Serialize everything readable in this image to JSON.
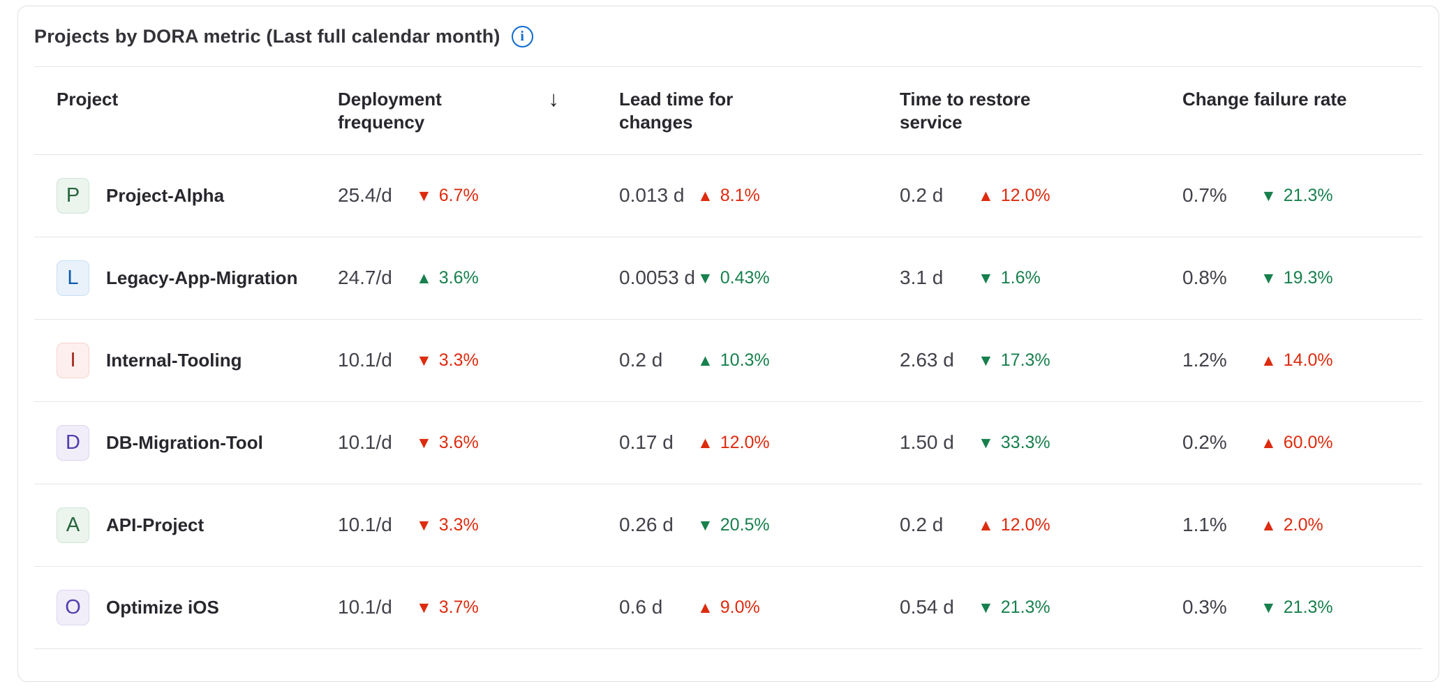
{
  "card": {
    "title": "Projects by DORA metric (Last full calendar month)",
    "info_icon_glyph": "i"
  },
  "icons": {
    "sort_descending": "↓",
    "trend_up": "▲",
    "trend_down": "▼"
  },
  "colors": {
    "good_trend": "#17804d",
    "bad_trend": "#dd2b0e",
    "info_accent": "#0e6bd0",
    "badge_green_text": "#24663b",
    "badge_blue_text": "#0b5cad",
    "badge_red_text": "#9e2819",
    "badge_purple_text": "#523dac"
  },
  "table": {
    "columns": [
      {
        "label": "Project",
        "sorted": false
      },
      {
        "label": "Deployment frequency",
        "sorted": true,
        "sort_direction": "descending"
      },
      {
        "label": "Lead time for changes",
        "sorted": false
      },
      {
        "label": "Time to restore service",
        "sorted": false
      },
      {
        "label": "Change failure rate",
        "sorted": false
      }
    ],
    "rows": [
      {
        "initial": "P",
        "badge": "green",
        "name": "Project-Alpha",
        "metrics": [
          {
            "value": "25.4/d",
            "delta": "6.7%",
            "direction": "down",
            "tone": "bad"
          },
          {
            "value": "0.013 d",
            "delta": "8.1%",
            "direction": "up",
            "tone": "bad"
          },
          {
            "value": "0.2 d",
            "delta": "12.0%",
            "direction": "up",
            "tone": "bad"
          },
          {
            "value": "0.7%",
            "delta": "21.3%",
            "direction": "down",
            "tone": "good"
          }
        ]
      },
      {
        "initial": "L",
        "badge": "blue",
        "name": "Legacy-App-Migration",
        "metrics": [
          {
            "value": "24.7/d",
            "delta": "3.6%",
            "direction": "up",
            "tone": "good"
          },
          {
            "value": "0.0053 d",
            "delta": "0.43%",
            "direction": "down",
            "tone": "good"
          },
          {
            "value": "3.1 d",
            "delta": "1.6%",
            "direction": "down",
            "tone": "good"
          },
          {
            "value": "0.8%",
            "delta": "19.3%",
            "direction": "down",
            "tone": "good"
          }
        ]
      },
      {
        "initial": "I",
        "badge": "red",
        "name": "Internal-Tooling",
        "metrics": [
          {
            "value": "10.1/d",
            "delta": "3.3%",
            "direction": "down",
            "tone": "bad"
          },
          {
            "value": "0.2 d",
            "delta": "10.3%",
            "direction": "up",
            "tone": "good"
          },
          {
            "value": "2.63 d",
            "delta": "17.3%",
            "direction": "down",
            "tone": "good"
          },
          {
            "value": "1.2%",
            "delta": "14.0%",
            "direction": "up",
            "tone": "bad"
          }
        ]
      },
      {
        "initial": "D",
        "badge": "purple",
        "name": "DB-Migration-Tool",
        "metrics": [
          {
            "value": "10.1/d",
            "delta": "3.6%",
            "direction": "down",
            "tone": "bad"
          },
          {
            "value": "0.17 d",
            "delta": "12.0%",
            "direction": "up",
            "tone": "bad"
          },
          {
            "value": "1.50 d",
            "delta": "33.3%",
            "direction": "down",
            "tone": "good"
          },
          {
            "value": "0.2%",
            "delta": "60.0%",
            "direction": "up",
            "tone": "bad"
          }
        ]
      },
      {
        "initial": "A",
        "badge": "green",
        "name": "API-Project",
        "metrics": [
          {
            "value": "10.1/d",
            "delta": "3.3%",
            "direction": "down",
            "tone": "bad"
          },
          {
            "value": "0.26 d",
            "delta": "20.5%",
            "direction": "down",
            "tone": "good"
          },
          {
            "value": "0.2 d",
            "delta": "12.0%",
            "direction": "up",
            "tone": "bad"
          },
          {
            "value": "1.1%",
            "delta": "2.0%",
            "direction": "up",
            "tone": "bad"
          }
        ]
      },
      {
        "initial": "O",
        "badge": "purple",
        "name": "Optimize iOS",
        "metrics": [
          {
            "value": "10.1/d",
            "delta": "3.7%",
            "direction": "down",
            "tone": "bad"
          },
          {
            "value": "0.6 d",
            "delta": "9.0%",
            "direction": "up",
            "tone": "bad"
          },
          {
            "value": "0.54 d",
            "delta": "21.3%",
            "direction": "down",
            "tone": "good"
          },
          {
            "value": "0.3%",
            "delta": "21.3%",
            "direction": "down",
            "tone": "good"
          }
        ]
      }
    ]
  }
}
